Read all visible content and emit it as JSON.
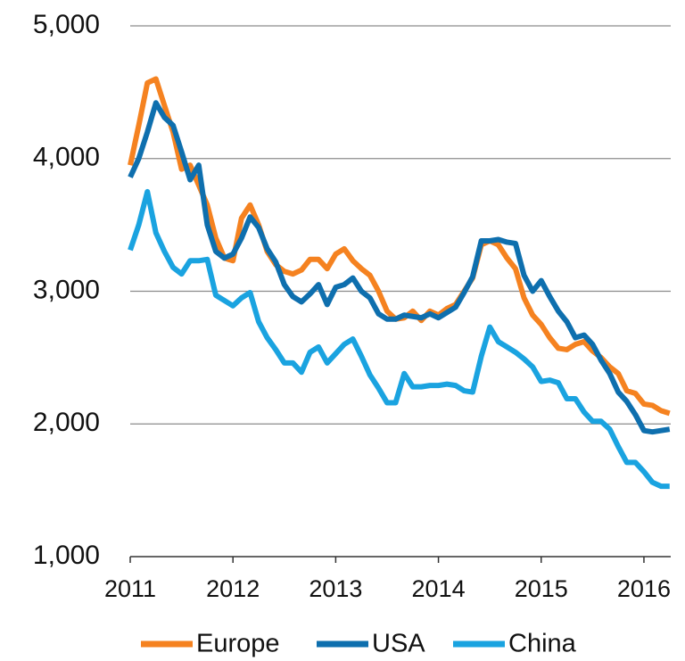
{
  "chart_data": {
    "type": "line",
    "x": [
      2011,
      2011.083,
      2011.167,
      2011.25,
      2011.333,
      2011.417,
      2011.5,
      2011.583,
      2011.667,
      2011.75,
      2011.833,
      2011.917,
      2012,
      2012.083,
      2012.167,
      2012.25,
      2012.333,
      2012.417,
      2012.5,
      2012.583,
      2012.667,
      2012.75,
      2012.833,
      2012.917,
      2013,
      2013.083,
      2013.167,
      2013.25,
      2013.333,
      2013.417,
      2013.5,
      2013.583,
      2013.667,
      2013.75,
      2013.833,
      2013.917,
      2014,
      2014.083,
      2014.167,
      2014.25,
      2014.333,
      2014.417,
      2014.5,
      2014.583,
      2014.667,
      2014.75,
      2014.833,
      2014.917,
      2015,
      2015.083,
      2015.167,
      2015.25,
      2015.333,
      2015.417,
      2015.5,
      2015.583,
      2015.667,
      2015.75,
      2015.833,
      2015.917,
      2016,
      2016.083,
      2016.167,
      2016.25
    ],
    "series": [
      {
        "name": "Europe",
        "color": "#f58220",
        "values": [
          3950,
          4250,
          4570,
          4600,
          4400,
          4200,
          3920,
          3950,
          3800,
          3650,
          3400,
          3250,
          3230,
          3550,
          3650,
          3500,
          3300,
          3200,
          3150,
          3130,
          3160,
          3240,
          3240,
          3170,
          3280,
          3320,
          3230,
          3170,
          3120,
          3000,
          2850,
          2790,
          2800,
          2850,
          2780,
          2850,
          2820,
          2870,
          2900,
          3000,
          3100,
          3350,
          3380,
          3350,
          3250,
          3170,
          2950,
          2820,
          2750,
          2650,
          2570,
          2560,
          2600,
          2620,
          2550,
          2500,
          2430,
          2380,
          2250,
          2230,
          2150,
          2140,
          2100,
          2080
        ]
      },
      {
        "name": "USA",
        "color": "#0e6fae",
        "values": [
          3860,
          4000,
          4200,
          4420,
          4310,
          4250,
          4050,
          3840,
          3950,
          3500,
          3300,
          3250,
          3280,
          3400,
          3560,
          3480,
          3320,
          3220,
          3050,
          2960,
          2920,
          2980,
          3050,
          2900,
          3030,
          3050,
          3100,
          3000,
          2950,
          2830,
          2790,
          2790,
          2820,
          2810,
          2800,
          2830,
          2800,
          2840,
          2880,
          2990,
          3110,
          3380,
          3380,
          3390,
          3370,
          3360,
          3120,
          3000,
          3080,
          2960,
          2850,
          2770,
          2650,
          2670,
          2600,
          2480,
          2380,
          2240,
          2170,
          2070,
          1950,
          1940,
          1950,
          1960
        ]
      },
      {
        "name": "China",
        "color": "#1aa3e0",
        "values": [
          3310,
          3500,
          3750,
          3440,
          3300,
          3180,
          3130,
          3230,
          3230,
          3240,
          2970,
          2930,
          2890,
          2950,
          2990,
          2770,
          2650,
          2560,
          2460,
          2460,
          2390,
          2540,
          2580,
          2460,
          2530,
          2600,
          2640,
          2510,
          2370,
          2270,
          2160,
          2160,
          2380,
          2280,
          2280,
          2290,
          2290,
          2300,
          2290,
          2250,
          2240,
          2510,
          2730,
          2620,
          2580,
          2540,
          2490,
          2430,
          2320,
          2330,
          2310,
          2190,
          2190,
          2090,
          2020,
          2020,
          1960,
          1830,
          1710,
          1710,
          1640,
          1560,
          1530,
          1530
        ]
      }
    ],
    "xlim": [
      2011,
      2016.25
    ],
    "xticks": [
      2011,
      2012,
      2013,
      2014,
      2015,
      2016
    ],
    "ylim": [
      1000,
      5000
    ],
    "yticks": [
      {
        "value": 1000,
        "label": "1,000"
      },
      {
        "value": 2000,
        "label": "2,000"
      },
      {
        "value": 3000,
        "label": "3,000"
      },
      {
        "value": 4000,
        "label": "4,000"
      },
      {
        "value": 5000,
        "label": "5,000"
      }
    ],
    "grid": true,
    "legend": "bottom"
  }
}
